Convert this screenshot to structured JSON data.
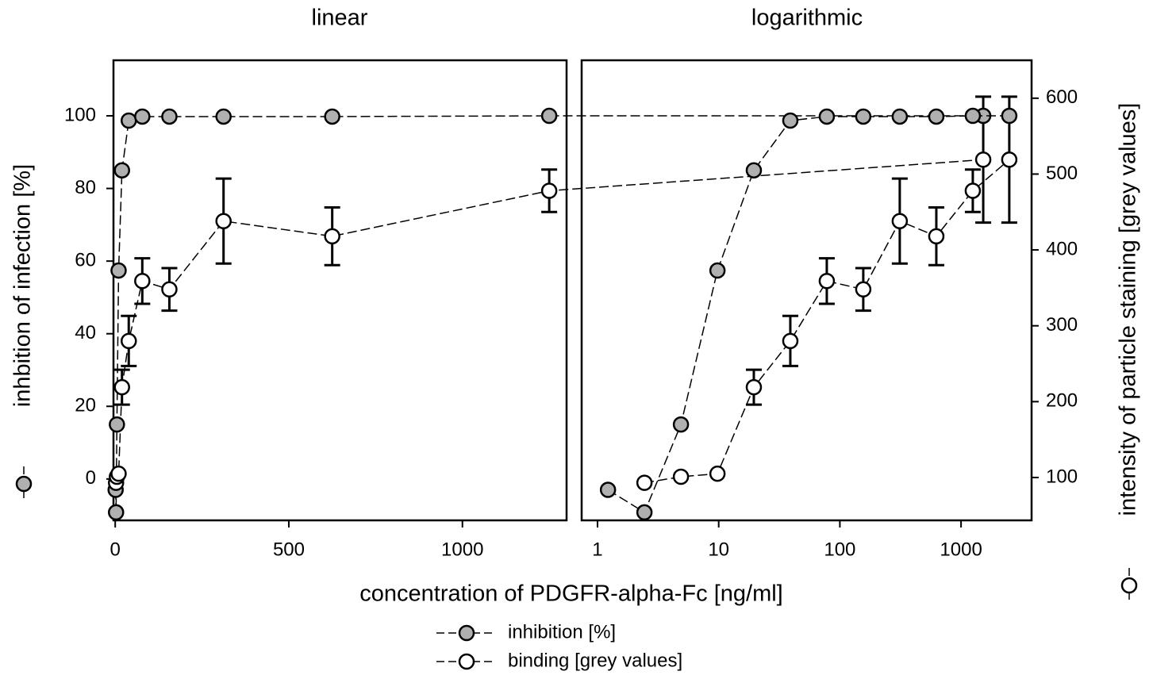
{
  "chart_data": [
    {
      "type": "line",
      "title": "linear",
      "x_label": "concentration of PDGFR-alpha-Fc [ng/ml]",
      "y_label": "inhbition of infection [%]",
      "x": [
        1.22,
        2.44,
        4.88,
        9.77,
        19.5,
        39,
        78,
        156,
        312,
        625,
        1250,
        2500
      ],
      "xscale": "linear",
      "xlim": [
        -5,
        1300
      ],
      "xticks": [
        0,
        500,
        1000
      ],
      "ylim": [
        -11.4,
        115.3
      ],
      "yticks": [
        0,
        20,
        40,
        60,
        80,
        100
      ],
      "y2lim": [
        43.5,
        650
      ],
      "series": [
        {
          "name": "inhibition [%]",
          "color": "#b0b0b0",
          "values": [
            -3,
            -9.2,
            15,
            57.4,
            85,
            98.7,
            99.8,
            99.8,
            99.8,
            99.8,
            100,
            100
          ]
        },
        {
          "name": "binding [grey values]",
          "color": "#ffffff",
          "axis": "y2",
          "values": [
            null,
            93,
            101,
            105,
            219,
            280,
            359,
            348,
            438,
            418,
            478,
            519
          ],
          "errors": [
            null,
            0,
            0,
            0,
            23,
            33,
            30,
            28,
            56,
            38,
            28,
            83
          ]
        }
      ]
    },
    {
      "type": "line",
      "title": "logarithmic",
      "y2_label": "intensity of particle staining [grey values]",
      "x": [
        1.22,
        2.44,
        4.88,
        9.77,
        19.5,
        39,
        78,
        156,
        312,
        625,
        1250,
        2500
      ],
      "xscale": "log",
      "xlim": [
        0.74,
        3820
      ],
      "xticks": [
        1,
        10,
        100,
        1000
      ],
      "ylim": [
        -11.4,
        115.3
      ],
      "y2lim": [
        43.5,
        650
      ],
      "y2ticks": [
        100,
        200,
        300,
        400,
        500,
        600
      ],
      "series": [
        {
          "name": "inhibition [%]",
          "color": "#b0b0b0",
          "values": [
            -3,
            -9.2,
            15,
            57.4,
            85,
            98.7,
            99.8,
            99.8,
            99.8,
            99.8,
            100,
            100
          ]
        },
        {
          "name": "binding [grey values]",
          "color": "#ffffff",
          "axis": "y2",
          "values": [
            null,
            93,
            101,
            105,
            219,
            280,
            359,
            348,
            438,
            418,
            478,
            519
          ],
          "errors": [
            null,
            0,
            0,
            0,
            23,
            33,
            30,
            28,
            56,
            38,
            28,
            83
          ]
        }
      ]
    }
  ]
}
